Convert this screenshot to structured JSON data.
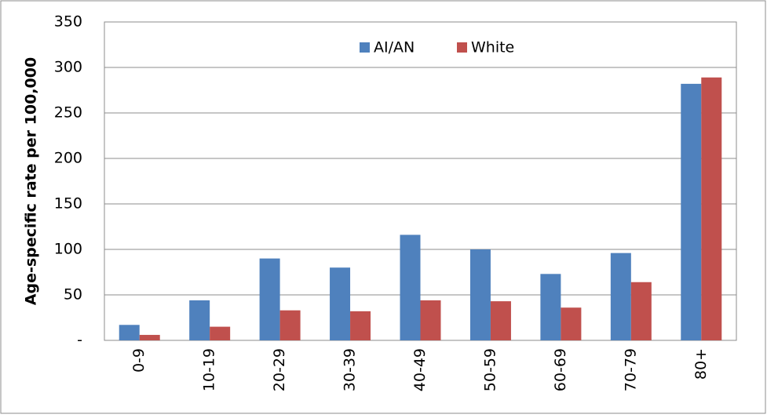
{
  "chart_data": {
    "type": "bar",
    "y_label": "Age-specific rate per 100,000",
    "categories": [
      "0-9",
      "10-19",
      "20-29",
      "30-39",
      "40-49",
      "50-59",
      "60-69",
      "70-79",
      "80+"
    ],
    "series": [
      {
        "name": "AI/AN",
        "color": "#4f81bd",
        "values": [
          17,
          44,
          90,
          80,
          116,
          100,
          73,
          96,
          282
        ]
      },
      {
        "name": "White",
        "color": "#c0504d",
        "values": [
          6,
          15,
          33,
          32,
          44,
          43,
          36,
          64,
          289
        ]
      }
    ],
    "ylim": [
      0,
      350
    ],
    "yticks": [
      {
        "value": 0,
        "label": "-"
      },
      50,
      100,
      150,
      200,
      250,
      300,
      350
    ],
    "grid": true,
    "legend": "top"
  }
}
